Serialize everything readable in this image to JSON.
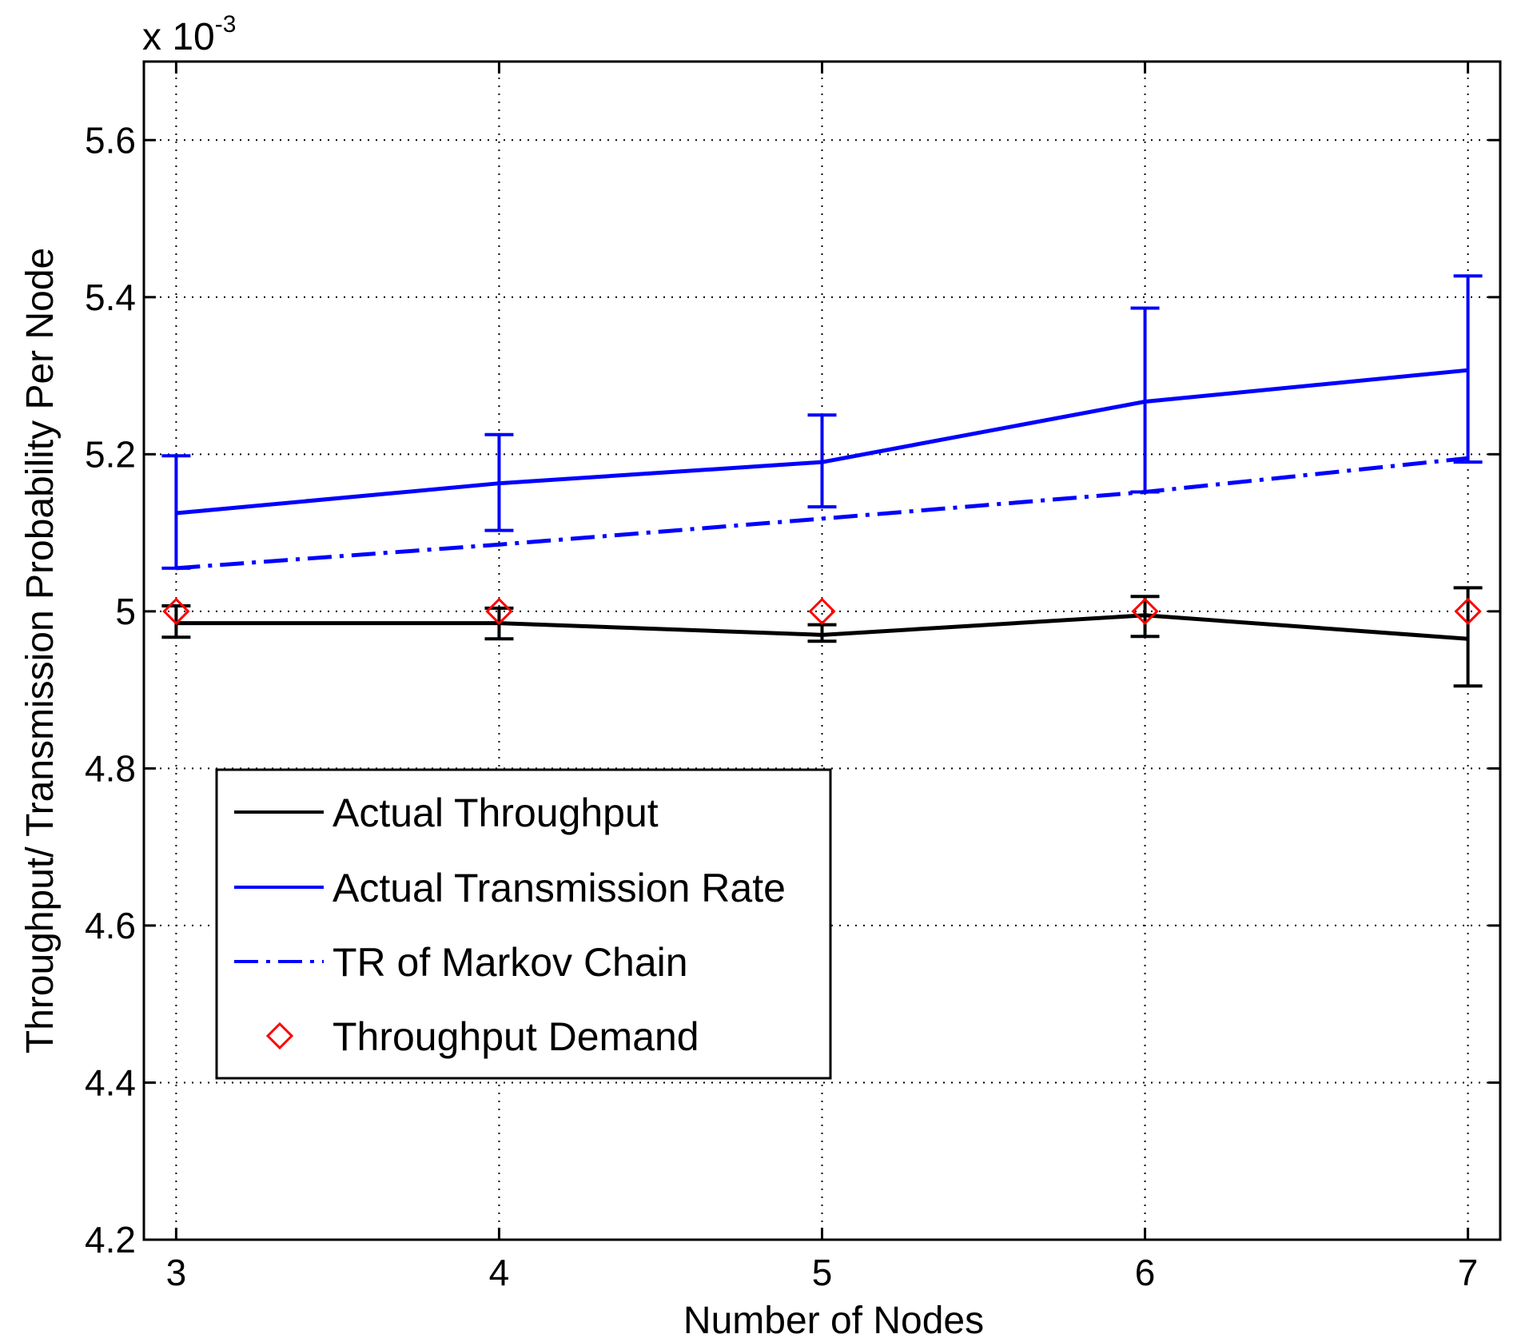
{
  "chart_data": {
    "type": "line",
    "title": "",
    "xlabel": "Number of Nodes",
    "ylabel": "Throughput/ Transmission Probability Per Node",
    "scale_label_base": "x 10",
    "scale_label_exponent": "-3",
    "x": [
      3,
      4,
      5,
      6,
      7
    ],
    "x_ticks": [
      "3",
      "4",
      "5",
      "6",
      "7"
    ],
    "y_ticks": [
      4.2,
      4.4,
      4.6,
      4.8,
      5.0,
      5.2,
      5.4,
      5.6
    ],
    "y_tick_labels": [
      "4.2",
      "4.4",
      "4.6",
      "4.8",
      "5",
      "5.2",
      "5.4",
      "5.6"
    ],
    "xlim": [
      2.9,
      7.1
    ],
    "ylim": [
      4.2,
      5.7
    ],
    "grid": true,
    "legend_position": "lower-left",
    "series": [
      {
        "name": "Actual Throughput",
        "style": "solid",
        "color": "#000000",
        "values": [
          4.985,
          4.985,
          4.97,
          4.995,
          4.965
        ],
        "error_low": [
          4.967,
          4.965,
          4.962,
          4.968,
          4.905
        ],
        "error_high": [
          5.007,
          5.004,
          4.983,
          5.019,
          5.03
        ]
      },
      {
        "name": "Actual Transmission Rate",
        "style": "solid",
        "color": "#0000ff",
        "values": [
          5.125,
          5.163,
          5.19,
          5.267,
          5.307
        ],
        "error_low": [
          5.055,
          5.103,
          5.133,
          5.152,
          5.19
        ],
        "error_high": [
          5.198,
          5.225,
          5.25,
          5.386,
          5.427
        ]
      },
      {
        "name": "TR of Markov Chain",
        "style": "dash-dot",
        "color": "#0000ff",
        "values": [
          5.055,
          5.085,
          5.118,
          5.152,
          5.195
        ]
      },
      {
        "name": "Throughput Demand",
        "style": "marker-diamond",
        "color": "#ff0000",
        "values": [
          5.0,
          5.0,
          5.0,
          5.0,
          5.0
        ]
      }
    ]
  }
}
